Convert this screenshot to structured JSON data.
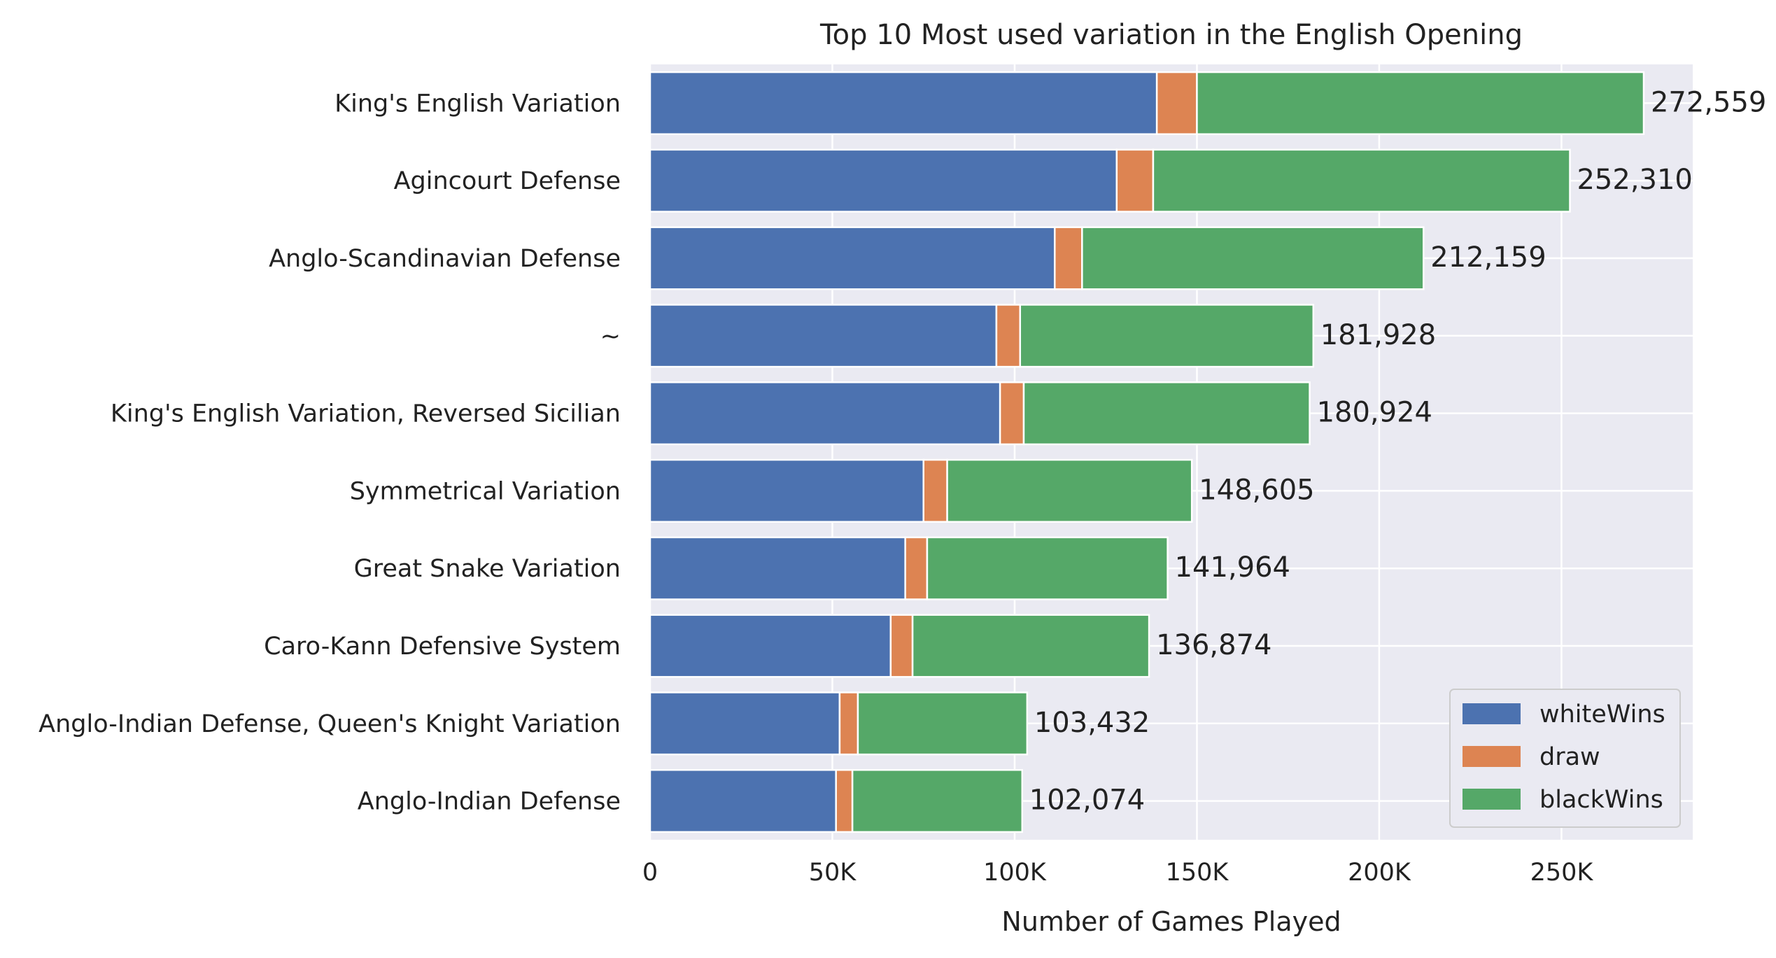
{
  "chart_data": {
    "type": "bar",
    "orientation": "horizontal",
    "stacked": true,
    "title": "Top 10 Most used variation in the English Opening",
    "xlabel": "Number of Games Played",
    "ylabel": "",
    "xlim": [
      0,
      286000
    ],
    "x_ticks": [
      0,
      50000,
      100000,
      150000,
      200000,
      250000
    ],
    "x_tick_labels": [
      "0",
      "50K",
      "100K",
      "150K",
      "200K",
      "250K"
    ],
    "grid": true,
    "legend_position": "lower-right",
    "categories": [
      "King's English Variation",
      "Agincourt Defense",
      "Anglo-Scandinavian Defense",
      "~",
      "King's English Variation, Reversed Sicilian",
      "Symmetrical Variation",
      "Great Snake Variation",
      "Caro-Kann Defensive System",
      "Anglo-Indian Defense, Queen's Knight Variation",
      "Anglo-Indian Defense"
    ],
    "series": [
      {
        "name": "whiteWins",
        "color": "#4c72b0",
        "values": [
          139000,
          128000,
          111000,
          95000,
          96000,
          75000,
          70000,
          66000,
          52000,
          51000
        ]
      },
      {
        "name": "draw",
        "color": "#dd8452",
        "values": [
          11000,
          10000,
          7500,
          6500,
          6500,
          6500,
          6000,
          6000,
          5000,
          4500
        ]
      },
      {
        "name": "blackWins",
        "color": "#55a868",
        "values": [
          122559,
          114310,
          93659,
          80428,
          78424,
          67105,
          65964,
          64874,
          46432,
          46574
        ]
      }
    ],
    "totals": [
      272559,
      252310,
      212159,
      181928,
      180924,
      148605,
      141964,
      136874,
      103432,
      102074
    ],
    "total_labels": [
      "272,559",
      "252,310",
      "212,159",
      "181,928",
      "180,924",
      "148,605",
      "141,964",
      "136,874",
      "103,432",
      "102,074"
    ]
  }
}
